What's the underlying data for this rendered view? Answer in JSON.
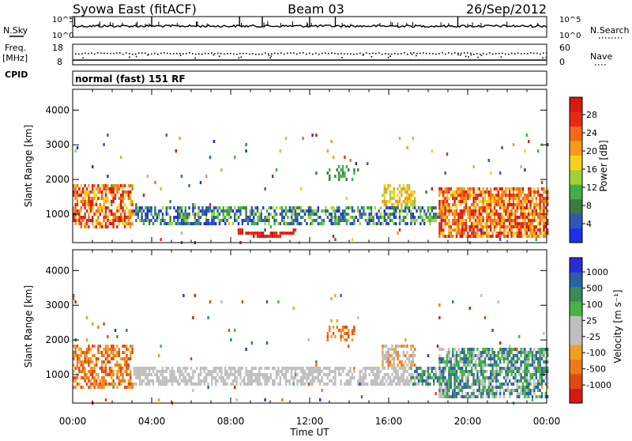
{
  "header": {
    "station": "Syowa East (fitACF)",
    "beam": "Beam 03",
    "date": "26/Sep/2012"
  },
  "strip_nsky": {
    "left_label": "N.Sky",
    "right_label": "N.Search",
    "right_ticks": [
      "10^5",
      "10^0"
    ],
    "left_ticks": [
      "10^5",
      "10^0"
    ]
  },
  "strip_freq": {
    "left_label_1": "Freq.",
    "left_label_2": "[MHz]",
    "left_ticks": [
      "18",
      "8"
    ],
    "right_label": "Nave",
    "right_ticks": [
      "60",
      "0"
    ]
  },
  "cpid": {
    "label": "CPID",
    "value": "normal (fast) 151 RF"
  },
  "colors": {
    "power": [
      "#1f2fe6",
      "#2d58b8",
      "#3b7c3c",
      "#3fb046",
      "#9ed43a",
      "#f7d21a",
      "#f59a1c",
      "#f26a18",
      "#e52a14",
      "#d61a12"
    ],
    "velocity": [
      "#2b2bd6",
      "#2d5fa8",
      "#3a8a5a",
      "#45b545",
      "#bfbfbf",
      "#bfbfbf",
      "#f0a020",
      "#f07818",
      "#e24812",
      "#d61a12"
    ]
  },
  "chart_data": [
    {
      "type": "heatmap",
      "title": "",
      "xlabel": "",
      "ylabel": "Slant Range [km]",
      "x_ticks": [
        "00:00",
        "04:00",
        "08:00",
        "12:00",
        "16:00",
        "20:00",
        "00:00"
      ],
      "y_ticks": [
        1000,
        2000,
        3000,
        4000
      ],
      "ylim": [
        180,
        4600
      ],
      "colorbar": {
        "label": "Power [dB]",
        "ticks": [
          "28",
          "24",
          "20",
          "16",
          "12",
          "8",
          "4"
        ],
        "range": [
          0,
          30
        ]
      },
      "features": [
        {
          "name": "main band",
          "time_range_h": [
            0,
            24
          ],
          "range_km": [
            700,
            1300
          ],
          "power_db": [
            8,
            24
          ]
        },
        {
          "name": "red arc",
          "time_range_h": [
            8.3,
            11.3
          ],
          "range_km": [
            400,
            560
          ],
          "power_db": [
            26,
            30
          ]
        },
        {
          "name": "scatter patch 16h",
          "time_range_h": [
            15.6,
            17.3
          ],
          "range_km": [
            1300,
            1900
          ],
          "power_db": [
            14,
            22
          ]
        },
        {
          "name": "evening echoes",
          "time_range_h": [
            18.5,
            23.5
          ],
          "range_km": [
            300,
            1900
          ],
          "power_db": [
            16,
            30
          ]
        }
      ]
    },
    {
      "type": "heatmap",
      "title": "",
      "xlabel": "Time UT",
      "ylabel": "Slant Range [km]",
      "x_ticks": [
        "00:00",
        "04:00",
        "08:00",
        "12:00",
        "16:00",
        "20:00",
        "00:00"
      ],
      "y_ticks": [
        1000,
        2000,
        3000,
        4000
      ],
      "ylim": [
        180,
        4600
      ],
      "colorbar": {
        "label": "Velocity [m s⁻¹]",
        "ticks": [
          "1000",
          "500",
          "100",
          "25",
          "-25",
          "-100",
          "-500",
          "-1000"
        ],
        "range": [
          -1000,
          1000
        ]
      },
      "features": [
        {
          "name": "ground scatter band",
          "time_range_h": [
            4,
            16
          ],
          "range_km": [
            600,
            1400
          ],
          "velocity_ms": [
            -25,
            25
          ]
        },
        {
          "name": "early echoes",
          "time_range_h": [
            0,
            3
          ],
          "range_km": [
            700,
            1600
          ],
          "velocity_ms": [
            -500,
            -100
          ]
        },
        {
          "name": "evening echoes",
          "time_range_h": [
            17,
            23.5
          ],
          "range_km": [
            400,
            2000
          ],
          "velocity_ms": [
            100,
            500
          ]
        }
      ]
    }
  ]
}
